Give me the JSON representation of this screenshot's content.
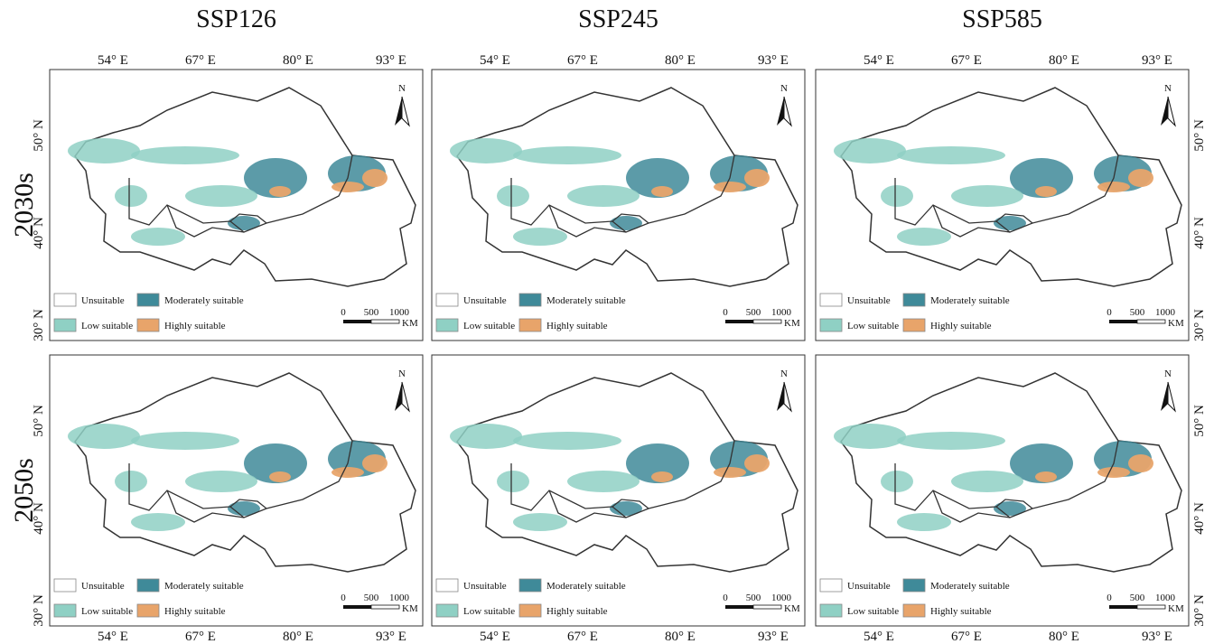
{
  "columns": [
    "SSP126",
    "SSP245",
    "SSP585"
  ],
  "rows": [
    "2030s",
    "2050s"
  ],
  "lon_labels": [
    "54° E",
    "67° E",
    "80° E",
    "93° E"
  ],
  "lat_labels": [
    "50° N",
    "40° N",
    "30° N"
  ],
  "north": "N",
  "legend": [
    {
      "label": "Unsuitable",
      "color": "#ffffff"
    },
    {
      "label": "Moderately suitable",
      "color": "#3f8a99"
    },
    {
      "label": "Low suitable",
      "color": "#8fd0c4"
    },
    {
      "label": "Highly suitable",
      "color": "#e8a46a"
    }
  ],
  "scale": {
    "ticks": [
      0,
      500,
      1000
    ],
    "unit": "KM"
  }
}
